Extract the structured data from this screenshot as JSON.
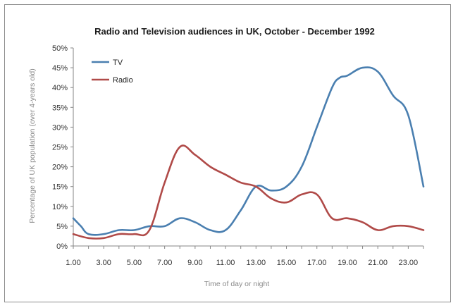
{
  "chart_data": {
    "type": "line",
    "title": "Radio and Television audiences in UK, October - December 1992",
    "xlabel": "Time of day or night",
    "ylabel": "Percentage of UK population (over 4-years old)",
    "xlim": [
      1,
      24
    ],
    "ylim": [
      0,
      50
    ],
    "x_ticks": [
      "1.00",
      "3.00",
      "5.00",
      "7.00",
      "9.00",
      "11.00",
      "13.00",
      "15.00",
      "17.00",
      "19.00",
      "21.00",
      "23.00"
    ],
    "y_ticks": [
      "0%",
      "5%",
      "10%",
      "15%",
      "20%",
      "25%",
      "30%",
      "35%",
      "40%",
      "45%",
      "50%"
    ],
    "legend_position": "top-left",
    "series": [
      {
        "name": "TV",
        "color": "#4a7fb0",
        "x": [
          1,
          1.5,
          2,
          3,
          4,
          5,
          6,
          7,
          8,
          9,
          10,
          11,
          12,
          13,
          14,
          15,
          16,
          17,
          18,
          18.5,
          19,
          20,
          21,
          22,
          23,
          24
        ],
        "y": [
          7,
          5,
          3,
          3,
          4,
          4,
          5,
          5,
          7,
          6,
          4,
          4,
          9,
          15,
          14,
          15,
          20,
          30,
          40,
          42.5,
          43,
          45,
          44,
          38,
          33,
          15
        ]
      },
      {
        "name": "Radio",
        "color": "#b04a48",
        "x": [
          1,
          2,
          3,
          4,
          5,
          6,
          7,
          8,
          9,
          10,
          11,
          12,
          13,
          14,
          15,
          16,
          17,
          18,
          19,
          20,
          21,
          22,
          23,
          24
        ],
        "y": [
          3,
          2,
          2,
          3,
          3,
          4,
          16,
          25,
          23,
          20,
          18,
          16,
          15,
          12,
          11,
          13,
          13,
          7,
          7,
          6,
          4,
          5,
          5,
          4
        ]
      }
    ]
  }
}
